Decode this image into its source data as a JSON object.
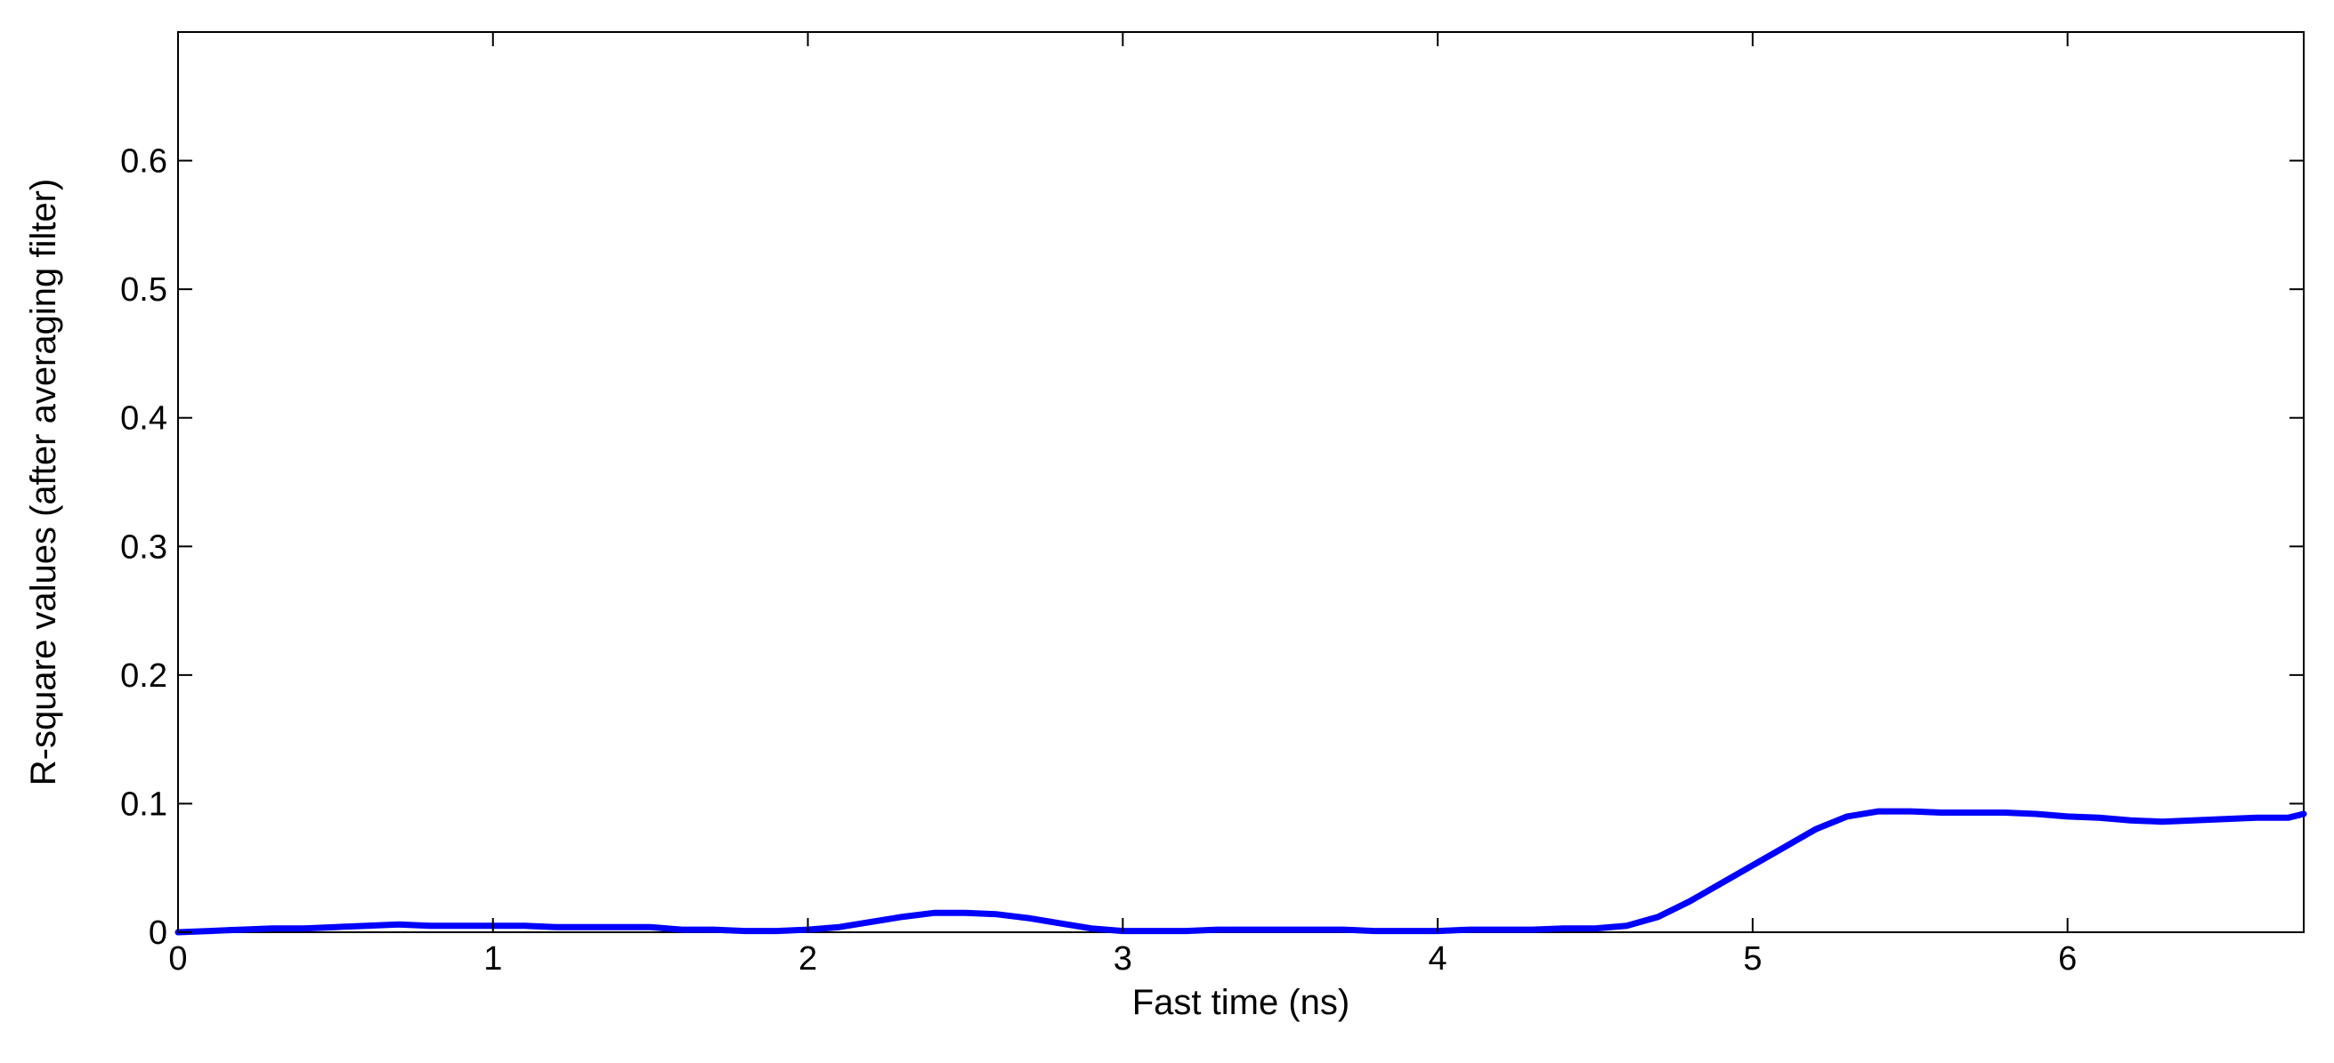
{
  "chart_data": {
    "type": "line",
    "title": "",
    "xlabel": "Fast time (ns)",
    "ylabel": "R-square values (after averaging filter)",
    "xlim": [
      0,
      6.75
    ],
    "ylim": [
      0,
      0.7
    ],
    "xticks": [
      0,
      1,
      2,
      3,
      4,
      5,
      6
    ],
    "xtick_labels": [
      "0",
      "1",
      "2",
      "3",
      "4",
      "5",
      "6"
    ],
    "yticks": [
      0,
      0.1,
      0.2,
      0.3,
      0.4,
      0.5,
      0.6
    ],
    "ytick_labels": [
      "0",
      "0.1",
      "0.2",
      "0.3",
      "0.4",
      "0.5",
      "0.6"
    ],
    "grid": false,
    "legend": "none",
    "line_color": "#0000ff",
    "series": [
      {
        "x": [
          0,
          0.1,
          0.2,
          0.3,
          0.4,
          0.5,
          0.6,
          0.7,
          0.8,
          0.9,
          1.0,
          1.1,
          1.2,
          1.3,
          1.4,
          1.5,
          1.6,
          1.7,
          1.8,
          1.9,
          2.0,
          2.1,
          2.2,
          2.3,
          2.4,
          2.5,
          2.6,
          2.7,
          2.8,
          2.9,
          3.0,
          3.1,
          3.2,
          3.3,
          3.4,
          3.5,
          3.6,
          3.7,
          3.8,
          3.9,
          4.0,
          4.1,
          4.2,
          4.3,
          4.4,
          4.5,
          4.6,
          4.7,
          4.8,
          4.9,
          5.0,
          5.1,
          5.2,
          5.3,
          5.4,
          5.5,
          5.6,
          5.7,
          5.8,
          5.9,
          6.0,
          6.1,
          6.2,
          6.3,
          6.4,
          6.5,
          6.6,
          6.7,
          6.75
        ],
        "y": [
          0.0,
          0.001,
          0.002,
          0.003,
          0.003,
          0.004,
          0.005,
          0.006,
          0.005,
          0.005,
          0.005,
          0.005,
          0.004,
          0.004,
          0.004,
          0.004,
          0.002,
          0.002,
          0.001,
          0.001,
          0.002,
          0.004,
          0.008,
          0.012,
          0.015,
          0.015,
          0.014,
          0.011,
          0.007,
          0.003,
          0.001,
          0.001,
          0.001,
          0.002,
          0.002,
          0.002,
          0.002,
          0.002,
          0.001,
          0.001,
          0.001,
          0.002,
          0.002,
          0.002,
          0.003,
          0.003,
          0.005,
          0.012,
          0.024,
          0.038,
          0.052,
          0.066,
          0.08,
          0.09,
          0.094,
          0.094,
          0.093,
          0.093,
          0.093,
          0.092,
          0.09,
          0.089,
          0.087,
          0.086,
          0.087,
          0.088,
          0.089,
          0.089,
          0.092
        ]
      }
    ]
  }
}
